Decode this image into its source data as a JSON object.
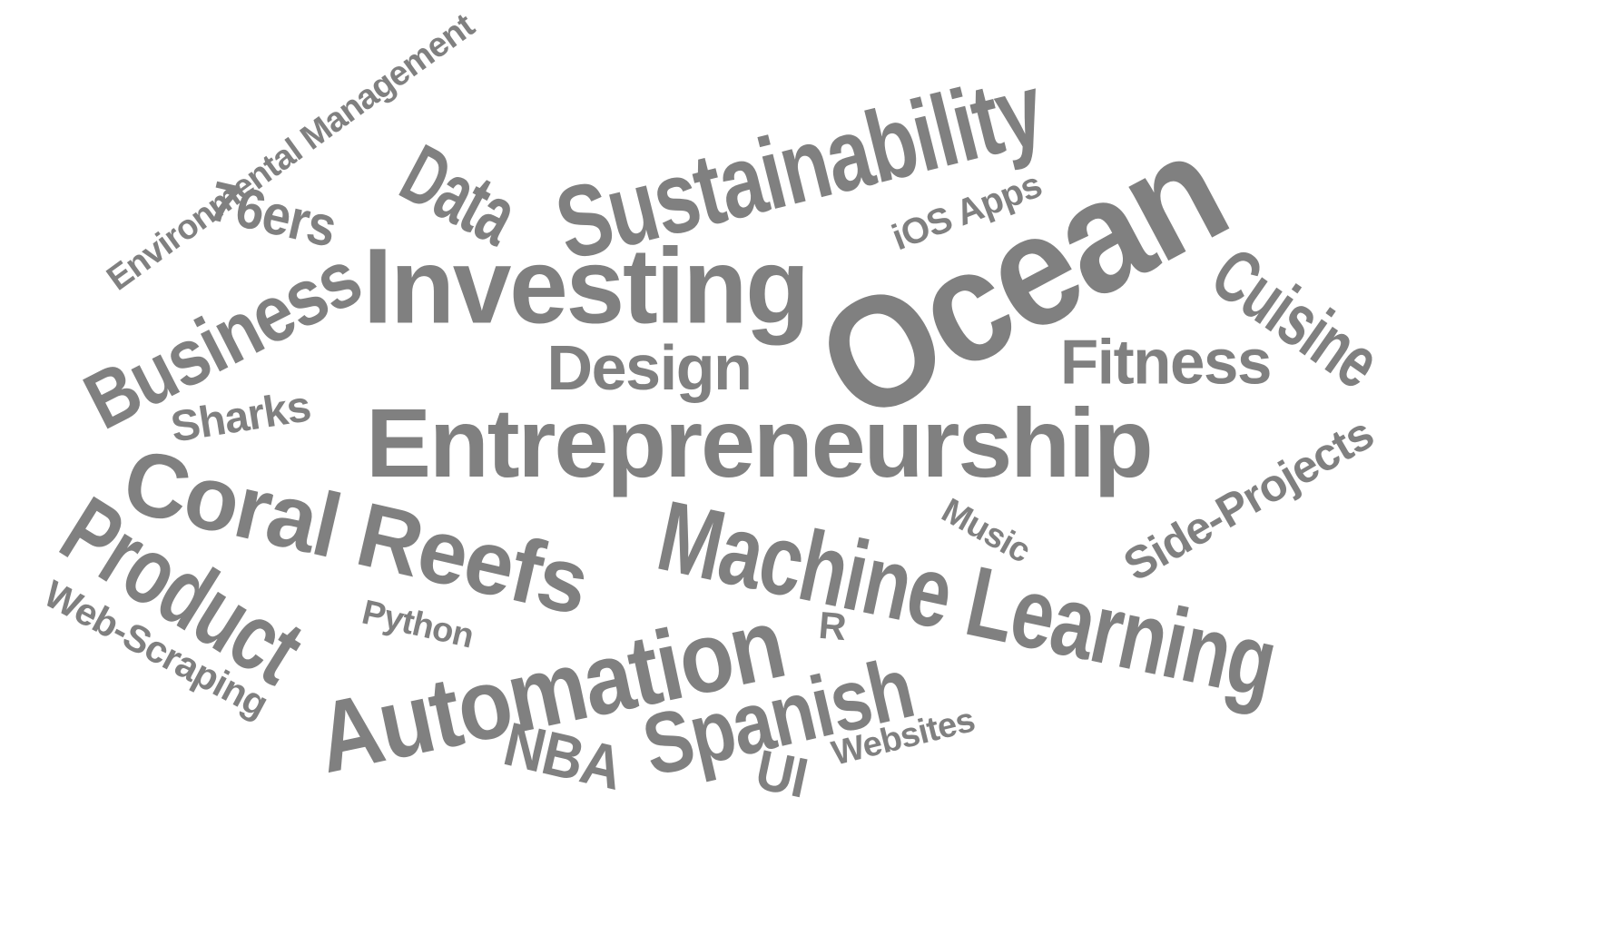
{
  "colors": {
    "word": "#808080",
    "background": "#ffffff"
  },
  "words": [
    {
      "text": "Environmental Management"
    },
    {
      "text": "76ers"
    },
    {
      "text": "Data"
    },
    {
      "text": "Sustainability"
    },
    {
      "text": "iOS Apps"
    },
    {
      "text": "Ocean"
    },
    {
      "text": "Business"
    },
    {
      "text": "Investing"
    },
    {
      "text": "Cuisine"
    },
    {
      "text": "Design"
    },
    {
      "text": "Fitness"
    },
    {
      "text": "Sharks"
    },
    {
      "text": "Entrepreneurship"
    },
    {
      "text": "Side-Projects"
    },
    {
      "text": "Coral Reefs"
    },
    {
      "text": "Music"
    },
    {
      "text": "Machine Learning"
    },
    {
      "text": "Product"
    },
    {
      "text": "Python"
    },
    {
      "text": "R"
    },
    {
      "text": "Web-Scraping"
    },
    {
      "text": "Automation"
    },
    {
      "text": "Spanish"
    },
    {
      "text": "NBA"
    },
    {
      "text": "Websites"
    },
    {
      "text": "UI"
    }
  ]
}
